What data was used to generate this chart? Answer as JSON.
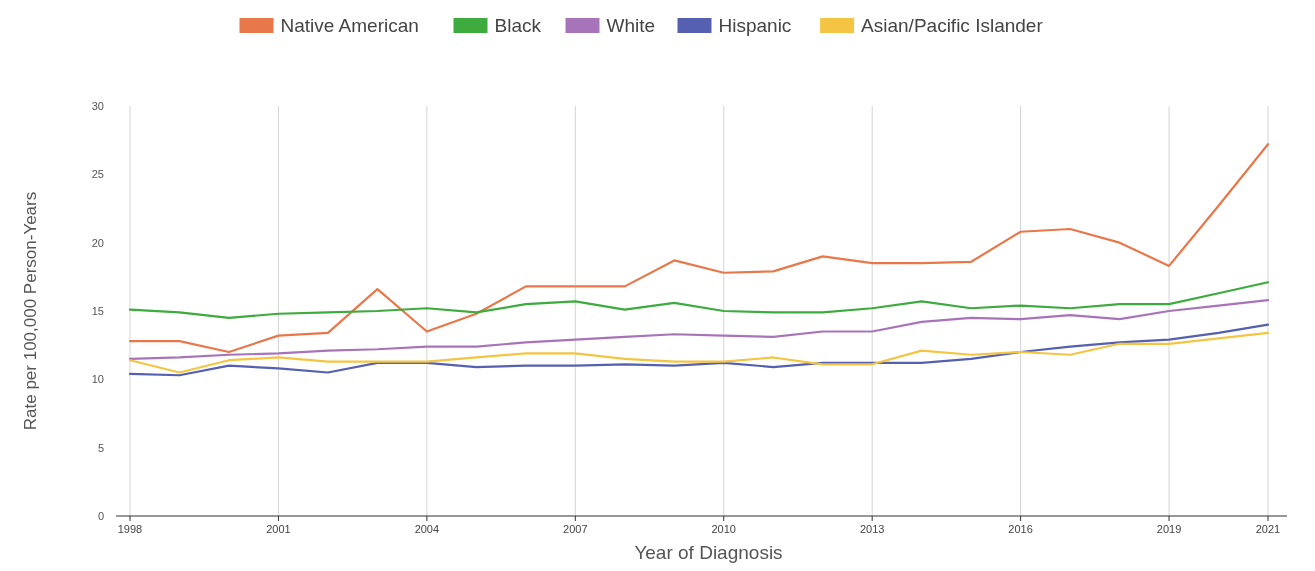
{
  "chart_data": {
    "type": "line",
    "xlabel": "Year of Diagnosis",
    "ylabel": "Rate per 100,000 Person-Years",
    "categories": [
      "1998",
      null,
      null,
      "2001",
      null,
      null,
      "2004",
      null,
      null,
      "2007",
      null,
      null,
      "2010",
      null,
      null,
      "2013",
      null,
      null,
      "2016",
      null,
      null,
      "2019",
      null,
      "2021"
    ],
    "series": [
      {
        "name": "Native American",
        "color": "#e8784a",
        "values": [
          12.8,
          12.8,
          12.0,
          13.2,
          13.4,
          16.6,
          13.5,
          14.8,
          16.8,
          16.8,
          16.8,
          18.7,
          17.8,
          17.9,
          19.0,
          18.5,
          18.5,
          18.6,
          20.8,
          21.0,
          20.0,
          18.3,
          22.7,
          27.2
        ]
      },
      {
        "name": "Black",
        "color": "#3dab3d",
        "values": [
          15.1,
          14.9,
          14.5,
          14.8,
          14.9,
          15.0,
          15.2,
          14.9,
          15.5,
          15.7,
          15.1,
          15.6,
          15.0,
          14.9,
          14.9,
          15.2,
          15.7,
          15.2,
          15.4,
          15.2,
          15.5,
          15.5,
          16.3,
          17.1
        ]
      },
      {
        "name": "White",
        "color": "#a774b9",
        "values": [
          11.5,
          11.6,
          11.8,
          11.9,
          12.1,
          12.2,
          12.4,
          12.4,
          12.7,
          12.9,
          13.1,
          13.3,
          13.2,
          13.1,
          13.5,
          13.5,
          14.2,
          14.5,
          14.4,
          14.7,
          14.4,
          15.0,
          15.4,
          15.8
        ]
      },
      {
        "name": "Hispanic",
        "color": "#5561b0",
        "values": [
          10.4,
          10.3,
          11.0,
          10.8,
          10.5,
          11.2,
          11.2,
          10.9,
          11.0,
          11.0,
          11.1,
          11.0,
          11.2,
          10.9,
          11.2,
          11.2,
          11.2,
          11.5,
          12.0,
          12.4,
          12.7,
          12.9,
          13.4,
          14.0
        ]
      },
      {
        "name": "Asian/Pacific Islander",
        "color": "#f4c542",
        "values": [
          11.4,
          10.5,
          11.4,
          11.6,
          11.3,
          11.3,
          11.3,
          11.6,
          11.9,
          11.9,
          11.5,
          11.3,
          11.3,
          11.6,
          11.1,
          11.1,
          12.1,
          11.8,
          12.0,
          11.8,
          12.6,
          12.6,
          13.0,
          13.4
        ]
      }
    ],
    "ylim": [
      0,
      30
    ],
    "yticks": [
      0,
      5,
      10,
      15,
      20,
      25,
      30
    ],
    "grid": "x",
    "legend": "top",
    "marker": "none",
    "line_style": "solid"
  }
}
